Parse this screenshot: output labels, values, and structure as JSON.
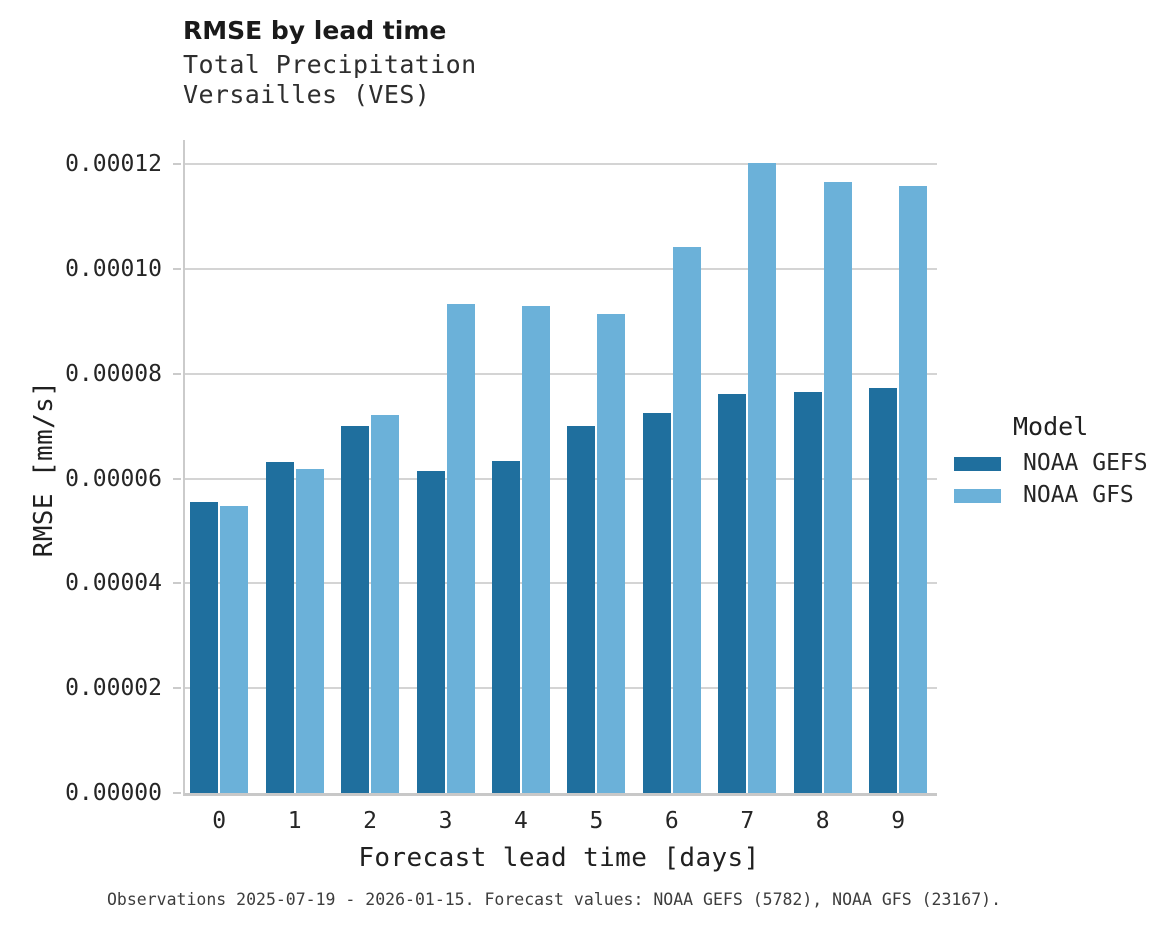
{
  "header": {
    "title": "RMSE by lead time",
    "subtitle_line1": "Total Precipitation",
    "subtitle_line2": "Versailles (VES)"
  },
  "footer": {
    "note": "Observations 2025-07-19 - 2026-01-15. Forecast values: NOAA GEFS (5782), NOAA GFS (23167)."
  },
  "legend": {
    "title": "Model"
  },
  "colors": {
    "noaa_gefs": "#1f6f9e",
    "noaa_gfs": "#6bb1d9",
    "gridline": "#d4d4d4",
    "spine": "#c9c9c9"
  },
  "chart_data": {
    "type": "bar",
    "title": "RMSE by lead time",
    "subtitle": [
      "Total Precipitation",
      "Versailles (VES)"
    ],
    "xlabel": "Forecast lead time [days]",
    "ylabel": "RMSE [mm/s]",
    "categories": [
      "0",
      "1",
      "2",
      "3",
      "4",
      "5",
      "6",
      "7",
      "8",
      "9"
    ],
    "series": [
      {
        "name": "NOAA GEFS",
        "color": "#1f6f9e",
        "values": [
          5.55e-05,
          6.31e-05,
          7.01e-05,
          6.14e-05,
          6.33e-05,
          7.01e-05,
          7.26e-05,
          7.62e-05,
          7.66e-05,
          7.73e-05
        ]
      },
      {
        "name": "NOAA GFS",
        "color": "#6bb1d9",
        "values": [
          5.48e-05,
          6.18e-05,
          7.22e-05,
          9.34e-05,
          9.29e-05,
          9.15e-05,
          0.0001042,
          0.0001203,
          0.0001166,
          0.0001159
        ]
      }
    ],
    "ylim": [
      0,
      0.000125
    ],
    "yticks": [
      0,
      2e-05,
      4e-05,
      6e-05,
      8e-05,
      0.0001,
      0.00012
    ],
    "ytick_labels": [
      "0.00000",
      "0.00002",
      "0.00004",
      "0.00006",
      "0.00008",
      "0.00010",
      "0.00012"
    ],
    "grid": "horizontal",
    "legend_title": "Model",
    "legend_position": "right"
  }
}
